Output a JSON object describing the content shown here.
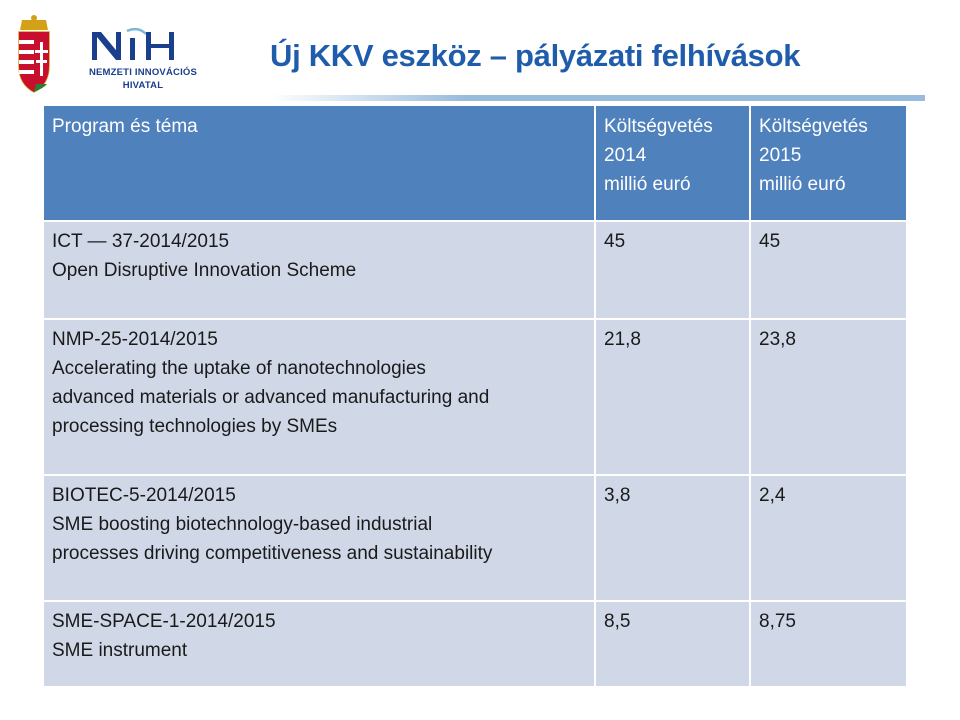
{
  "header": {
    "title": "Új KKV eszköz – pályázati felhívások",
    "logo": {
      "name_lines": [
        "NEMZETI INNOVÁCIÓS",
        "HIVATAL"
      ],
      "mark_text": "NIH",
      "colors": {
        "brand_blue": "#1f5cab",
        "crest_red": "#c8102e",
        "crest_green": "#2e7d32"
      }
    }
  },
  "table": {
    "columns": [
      {
        "label": "Program és téma"
      },
      {
        "label_lines": [
          "Költségvetés",
          "2014",
          "millió euró"
        ]
      },
      {
        "label_lines": [
          "Költségvetés",
          "2015",
          "millió euró"
        ]
      }
    ],
    "rows": [
      {
        "program_lines": [
          "ICT — 37-2014/2015",
          "Open Disruptive Innovation Scheme"
        ],
        "budget_2014": "45",
        "budget_2015": "45"
      },
      {
        "program_lines": [
          "NMP-25-2014/2015",
          "Accelerating the uptake of nanotechnologies",
          "advanced materials or advanced manufacturing and",
          "processing technologies by SMEs"
        ],
        "budget_2014": "21,8",
        "budget_2015": "23,8"
      },
      {
        "program_lines": [
          "BIOTEC-5-2014/2015",
          "SME boosting biotechnology-based industrial",
          "processes driving competitiveness and sustainability"
        ],
        "budget_2014": "3,8",
        "budget_2015": "2,4"
      },
      {
        "program_lines": [
          "SME-SPACE-1-2014/2015",
          "SME instrument"
        ],
        "budget_2014": "8,5",
        "budget_2015": "8,75"
      }
    ],
    "colors": {
      "header_bg": "#4f81bd",
      "row_bg": "#d0d8e8"
    }
  }
}
